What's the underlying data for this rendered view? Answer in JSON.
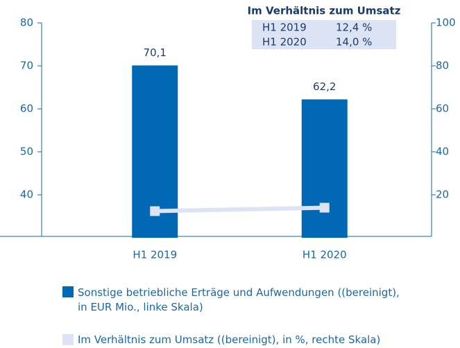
{
  "chart_data": {
    "type": "bar",
    "annotation": "Im Verhältnis zum Umsatz",
    "categories": [
      "H1 2019",
      "H1 2020"
    ],
    "series": [
      {
        "name": "Sonstige betriebliche Erträge und Aufwendungen ((bereinigt), in EUR Mio., linke Skala)",
        "type": "bar",
        "color": "#0068b4",
        "values": [
          70.1,
          62.2
        ],
        "value_labels": [
          "70,1",
          "62,2"
        ]
      },
      {
        "name": "Im Verhältnis zum Umsatz ((bereinigt), in %, rechte Skala)",
        "type": "line",
        "axis": "y2",
        "color": "#dbe3f4",
        "values": [
          12.4,
          14.0
        ],
        "value_labels": [
          "12,4 %",
          "14,0 %"
        ]
      }
    ],
    "ylim": [
      30,
      80
    ],
    "yticks": [
      40,
      50,
      60,
      70,
      80
    ],
    "y2lim": [
      0,
      100
    ],
    "y2ticks": [
      20,
      40,
      60,
      80,
      100
    ]
  }
}
